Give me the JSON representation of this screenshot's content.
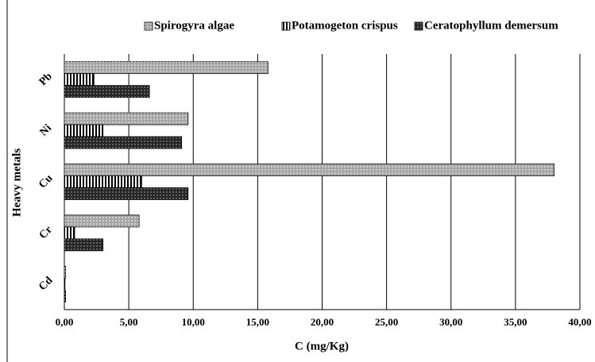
{
  "chart_data": {
    "type": "hbar",
    "ylabel": "Heavy metals",
    "xlabel": "C (mg/Kg)",
    "categories": [
      "Pb",
      "Ni",
      "Cu",
      "Cr",
      "Cd"
    ],
    "series": [
      {
        "name": "Spirogyra algae",
        "color": "#a6a6a6",
        "values": [
          15.8,
          9.6,
          38.0,
          5.8,
          0.1
        ]
      },
      {
        "name": "Potamogeton crispus",
        "color": "#ffffff",
        "values": [
          2.3,
          3.0,
          6.0,
          0.8,
          0.05
        ]
      },
      {
        "name": "Ceratophyllum demersum",
        "color": "#262626",
        "values": [
          6.6,
          9.1,
          9.6,
          3.0,
          0.1
        ]
      }
    ],
    "xlim": [
      0,
      40
    ],
    "xticks": [
      {
        "value": 0,
        "label": "0,00"
      },
      {
        "value": 5,
        "label": "5,00"
      },
      {
        "value": 10,
        "label": "10,00"
      },
      {
        "value": 15,
        "label": "15,00"
      },
      {
        "value": 20,
        "label": "20,00"
      },
      {
        "value": 25,
        "label": "25,00"
      },
      {
        "value": 30,
        "label": "30,00"
      },
      {
        "value": 35,
        "label": "35,00"
      },
      {
        "value": 40,
        "label": "40,00"
      }
    ],
    "grid": true,
    "legend": "top"
  }
}
